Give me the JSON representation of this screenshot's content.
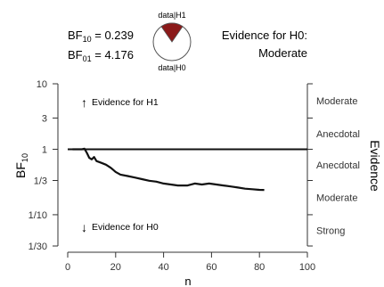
{
  "header": {
    "bf10_label": "BF",
    "bf10_sub": "10",
    "bf10_value": " = 0.239",
    "bf01_label": "BF",
    "bf01_sub": "01",
    "bf01_value": " = 4.176",
    "pie_top_label": "data|H1",
    "pie_bottom_label": "data|H0",
    "evidence_line1": "Evidence for H0:",
    "evidence_line2": "Moderate"
  },
  "colors": {
    "pie_h1": "#8b1a1a",
    "pie_h0": "#ffffff",
    "line": "#111111"
  },
  "chart_data": {
    "type": "line",
    "title": "",
    "xlabel": "n",
    "ylabel": "BF",
    "ylabel_sub": "10",
    "right_axis_label": "Evidence",
    "log_scale_y": true,
    "xlim": [
      0,
      100
    ],
    "ylim": [
      0.0333,
      10
    ],
    "x_ticks": [
      0,
      20,
      40,
      60,
      80,
      100
    ],
    "y_ticks": [
      {
        "value": 10,
        "label": "10"
      },
      {
        "value": 3,
        "label": "3"
      },
      {
        "value": 1,
        "label": "1"
      },
      {
        "value": 0.3333,
        "label": "1/3"
      },
      {
        "value": 0.1,
        "label": "1/10"
      },
      {
        "value": 0.0333,
        "label": "1/30"
      }
    ],
    "evidence_bands": [
      {
        "value": 5.477,
        "label": "Moderate"
      },
      {
        "value": 1.732,
        "label": "Anecdotal"
      },
      {
        "value": 0.577,
        "label": "Anecdotal"
      },
      {
        "value": 0.183,
        "label": "Moderate"
      },
      {
        "value": 0.0577,
        "label": "Strong"
      }
    ],
    "annotations": {
      "h1_text": "Evidence for H1",
      "h0_text": "Evidence for H0",
      "h1_arrow": "↑",
      "h0_arrow": "↓"
    },
    "reference_line": 1,
    "series": [
      {
        "x": [
          2,
          4,
          6,
          7,
          8,
          9,
          10,
          11,
          12,
          14,
          16,
          18,
          20,
          22,
          25,
          28,
          31,
          34,
          37,
          40,
          43,
          46,
          50,
          53,
          56,
          59,
          62,
          65,
          68,
          71,
          74,
          77,
          80,
          82
        ],
        "y": [
          1,
          1,
          1,
          1.02,
          0.88,
          0.74,
          0.7,
          0.76,
          0.66,
          0.62,
          0.58,
          0.52,
          0.45,
          0.41,
          0.39,
          0.37,
          0.35,
          0.33,
          0.32,
          0.3,
          0.29,
          0.28,
          0.28,
          0.3,
          0.29,
          0.3,
          0.29,
          0.28,
          0.27,
          0.26,
          0.25,
          0.245,
          0.24,
          0.239
        ]
      }
    ]
  }
}
